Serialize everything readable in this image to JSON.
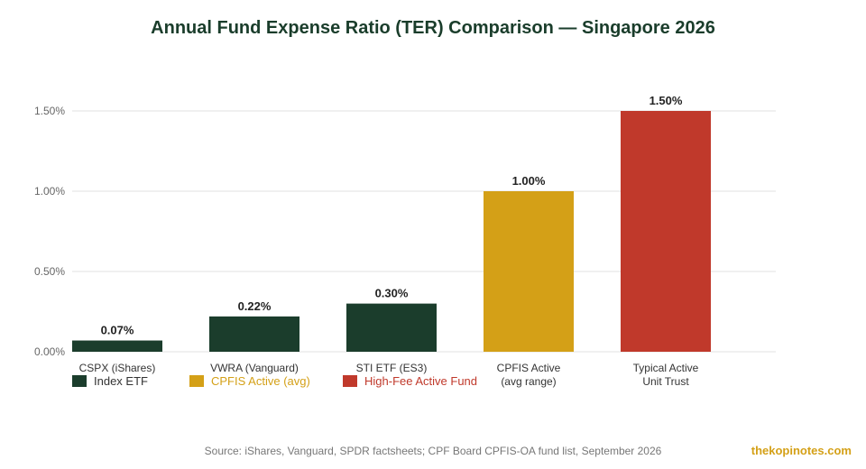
{
  "chart_data": {
    "type": "bar",
    "title": "Annual Fund Expense Ratio (TER) Comparison — Singapore 2026",
    "categories": [
      [
        "CSPX (iShares)"
      ],
      [
        "VWRA (Vanguard)"
      ],
      [
        "STI ETF (ES3)"
      ],
      [
        "CPFIS Active",
        "(avg range)"
      ],
      [
        "Typical Active",
        "Unit Trust"
      ]
    ],
    "values": [
      0.07,
      0.22,
      0.3,
      1.0,
      1.5
    ],
    "value_labels": [
      "0.07%",
      "0.22%",
      "0.30%",
      "1.00%",
      "1.50%"
    ],
    "bar_groups": [
      "Index ETF",
      "Index ETF",
      "Index ETF",
      "CPFIS Active (avg)",
      "High-Fee Active Fund"
    ],
    "ylim": [
      0,
      1.5
    ],
    "yticks": [
      0,
      0.5,
      1.0,
      1.5
    ],
    "ytick_labels": [
      "0.00%",
      "0.50%",
      "1.00%",
      "1.50%"
    ],
    "xlabel": "",
    "ylabel": "",
    "grid": true,
    "legend_position": "bottom-left",
    "legend": [
      {
        "label": "Index ETF",
        "color": "#1b3d2c"
      },
      {
        "label": "CPFIS Active (avg)",
        "color": "#d4a017"
      },
      {
        "label": "High-Fee Active Fund",
        "color": "#c0392b"
      }
    ]
  },
  "source": "Source: iShares, Vanguard, SPDR factsheets; CPF Board CPFIS-OA fund list, September 2026",
  "brand": "thekopinotes.com"
}
